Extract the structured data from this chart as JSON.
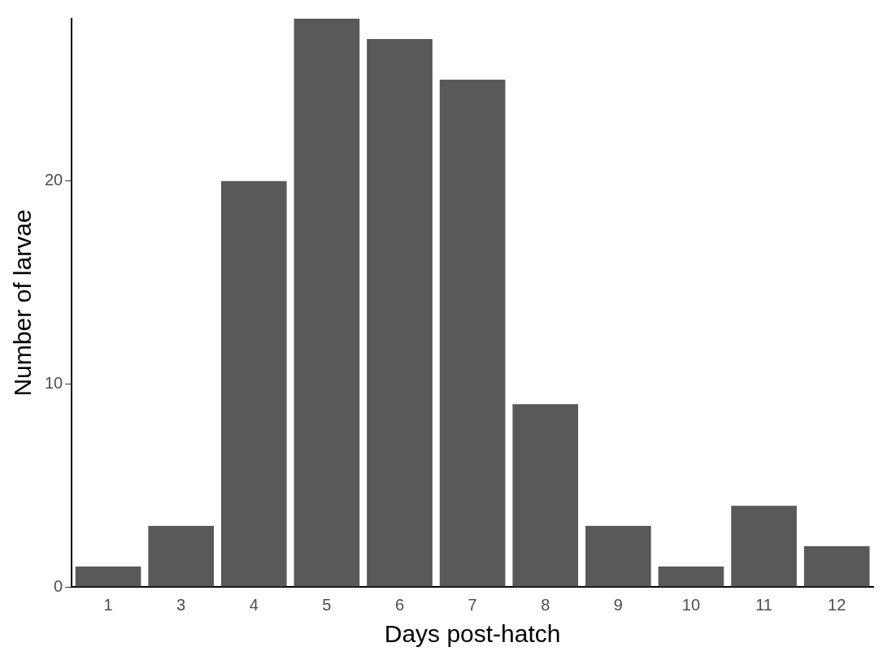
{
  "chart_data": {
    "type": "bar",
    "xlabel": "Days post-hatch",
    "ylabel": "Number of larvae",
    "categories": [
      "1",
      "3",
      "4",
      "5",
      "6",
      "7",
      "8",
      "9",
      "10",
      "11",
      "12"
    ],
    "values": [
      1,
      3,
      20,
      28,
      27,
      25,
      9,
      3,
      1,
      4,
      2
    ],
    "color": "#595959",
    "ylim": [
      0,
      28
    ],
    "yticks": [
      0,
      10,
      20
    ],
    "grid": false,
    "legend": false
  }
}
